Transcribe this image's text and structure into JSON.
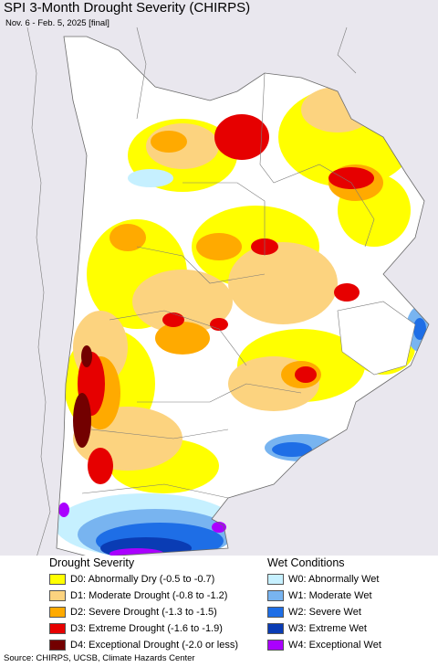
{
  "title": "SPI 3-Month Drought Severity (CHIRPS)",
  "subtitle": "Nov. 6 - Feb. 5, 2025 [final]",
  "legend": {
    "drought_heading": "Drought Severity",
    "wet_heading": "Wet Conditions",
    "drought_items": [
      {
        "label": "D0: Abnormally Dry (-0.5 to -0.7)",
        "color": "#ffff00"
      },
      {
        "label": "D1: Moderate Drought (-0.8 to -1.2)",
        "color": "#fcd37f"
      },
      {
        "label": "D2: Severe Drought (-1.3 to -1.5)",
        "color": "#ffaa00"
      },
      {
        "label": "D3: Extreme Drought (-1.6 to -1.9)",
        "color": "#e60000"
      },
      {
        "label": "D4: Exceptional Drought (-2.0 or less)",
        "color": "#730000"
      }
    ],
    "wet_items": [
      {
        "label": "W0: Abnormally Wet",
        "color": "#c6f0ff"
      },
      {
        "label": "W1: Moderate Wet",
        "color": "#78b4f0"
      },
      {
        "label": "W2: Severe Wet",
        "color": "#1e6ee6"
      },
      {
        "label": "W3: Extreme Wet",
        "color": "#0a3cb4"
      },
      {
        "label": "W4: Exceptional Wet",
        "color": "#aa00ff"
      }
    ]
  },
  "source": "Source: CHIRPS, UCSB, Climate Hazards Center",
  "colors": {
    "outside_region": "#e9e7ee",
    "boundary": "#6b6b6b"
  }
}
